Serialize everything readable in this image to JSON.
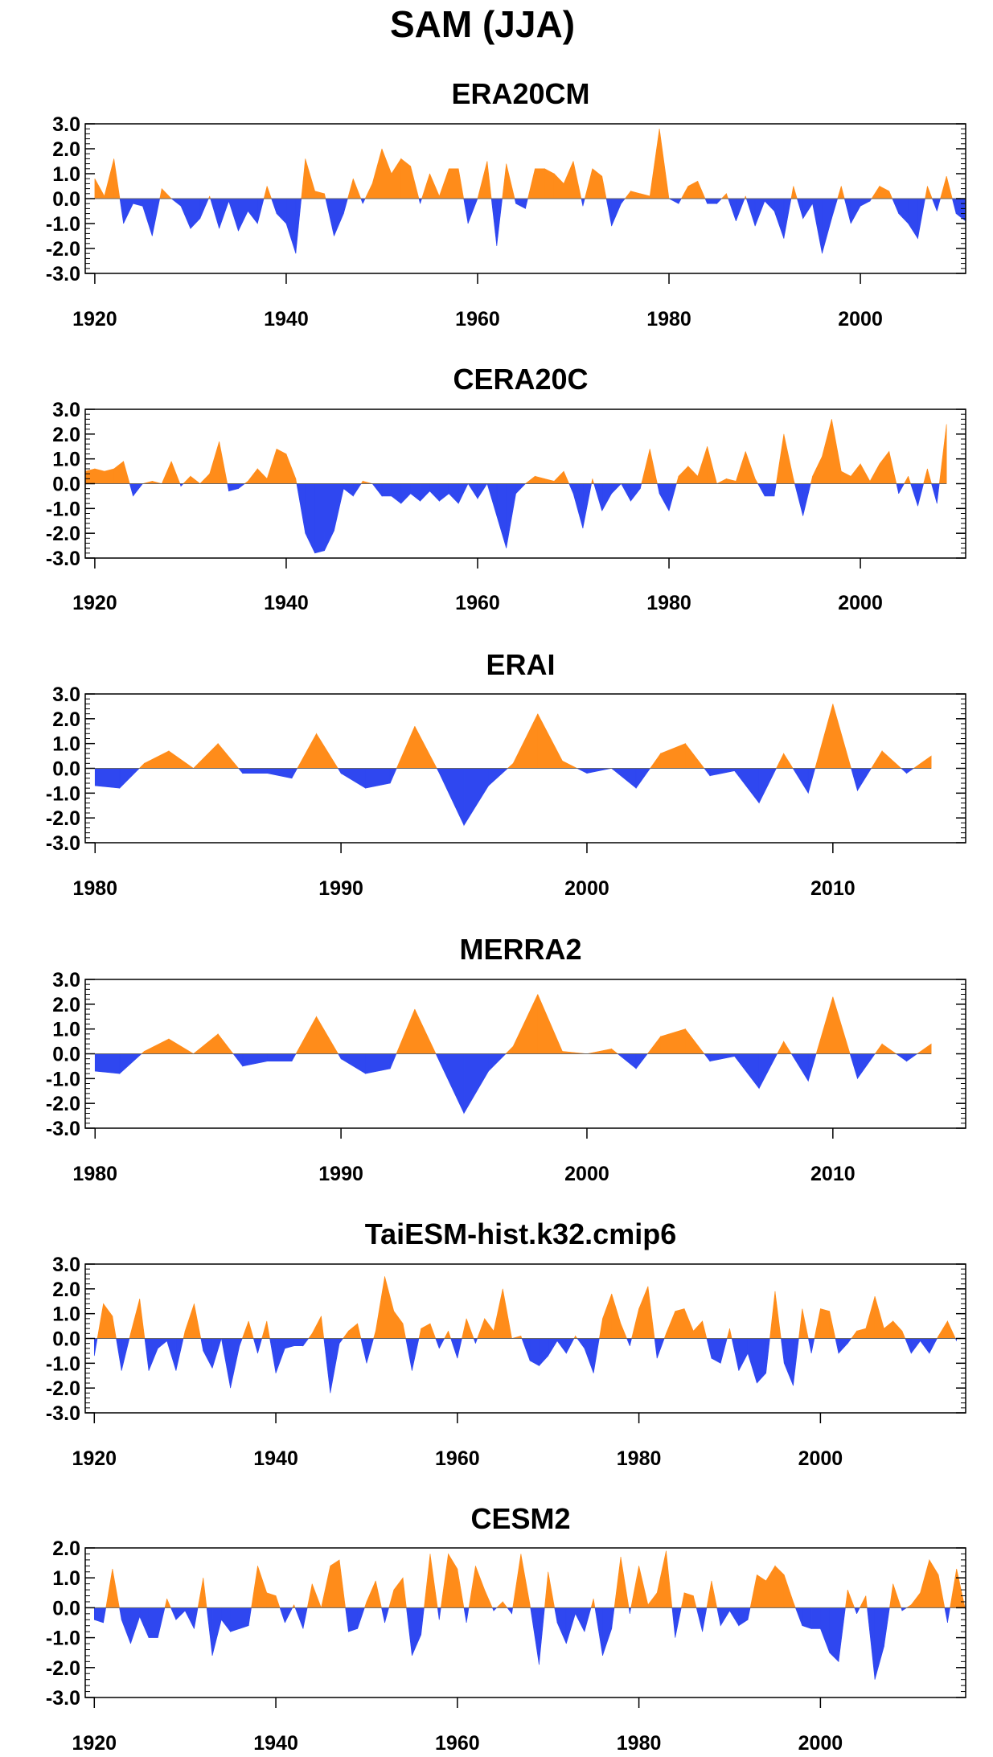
{
  "figure": {
    "title": "SAM (JJA)",
    "pos_color": "#ff8c1a",
    "neg_color": "#2f47f0"
  },
  "chart_data": [
    {
      "type": "area",
      "title": "ERA20CM",
      "xlim": [
        1919,
        2011
      ],
      "ylim": [
        -3.0,
        3.0
      ],
      "xticks": [
        1920,
        1940,
        1960,
        1980,
        2000
      ],
      "yticks": [
        "3.0",
        "2.0",
        "1.0",
        "0.0",
        "-1.0",
        "-2.0",
        "-3.0"
      ],
      "x_start": 1920,
      "values": [
        0.8,
        0.1,
        1.6,
        -1.0,
        -0.2,
        -0.3,
        -1.5,
        0.4,
        0.0,
        -0.3,
        -1.2,
        -0.8,
        0.1,
        -1.2,
        -0.1,
        -1.3,
        -0.5,
        -1.0,
        0.5,
        -0.6,
        -1.0,
        -2.2,
        1.6,
        0.3,
        0.2,
        -1.5,
        -0.6,
        0.8,
        -0.2,
        0.6,
        2.0,
        1.0,
        1.6,
        1.3,
        -0.2,
        1.0,
        0.1,
        1.2,
        1.2,
        -1.0,
        0.0,
        1.5,
        -1.9,
        1.4,
        -0.2,
        -0.4,
        1.2,
        1.2,
        1.0,
        0.6,
        1.5,
        -0.3,
        1.2,
        0.9,
        -1.1,
        -0.2,
        0.3,
        0.2,
        0.1,
        2.8,
        0.0,
        -0.2,
        0.5,
        0.7,
        -0.2,
        -0.2,
        0.2,
        -0.9,
        0.1,
        -1.1,
        -0.1,
        -0.5,
        -1.6,
        0.5,
        -0.8,
        -0.2,
        -2.2,
        -0.8,
        0.5,
        -1.0,
        -0.3,
        -0.1,
        0.5,
        0.3,
        -0.6,
        -1.0,
        -1.6,
        0.5,
        -0.5,
        0.9,
        -0.6,
        -0.9
      ]
    },
    {
      "type": "area",
      "title": "CERA20C",
      "xlim": [
        1919,
        2011
      ],
      "ylim": [
        -3.0,
        3.0
      ],
      "xticks": [
        1920,
        1940,
        1960,
        1980,
        2000
      ],
      "yticks": [
        "3.0",
        "2.0",
        "1.0",
        "0.0",
        "-1.0",
        "-2.0",
        "-3.0"
      ],
      "x_start": 1919,
      "values": [
        0.5,
        0.6,
        0.5,
        0.6,
        0.9,
        -0.5,
        0.0,
        0.1,
        0.0,
        0.9,
        -0.1,
        0.3,
        0.0,
        0.4,
        1.7,
        -0.3,
        -0.2,
        0.1,
        0.6,
        0.2,
        1.4,
        1.2,
        0.2,
        -2.0,
        -2.8,
        -2.7,
        -1.9,
        -0.2,
        -0.5,
        0.1,
        0.0,
        -0.5,
        -0.5,
        -0.8,
        -0.4,
        -0.7,
        -0.3,
        -0.7,
        -0.4,
        -0.8,
        0.0,
        -0.6,
        0.0,
        -1.3,
        -2.6,
        -0.4,
        0.0,
        0.3,
        0.2,
        0.1,
        0.5,
        -0.4,
        -1.8,
        0.2,
        -1.1,
        -0.4,
        0.0,
        -0.7,
        -0.2,
        1.4,
        -0.4,
        -1.1,
        0.3,
        0.7,
        0.3,
        1.5,
        0.0,
        0.2,
        0.1,
        1.3,
        0.2,
        -0.5,
        -0.5,
        2.0,
        0.2,
        -1.3,
        0.3,
        1.1,
        2.6,
        0.5,
        0.3,
        0.8,
        0.1,
        0.8,
        1.3,
        -0.4,
        0.3,
        -0.9,
        0.6,
        -0.8,
        2.4
      ]
    },
    {
      "type": "area",
      "title": "ERAI",
      "xlim": [
        1979.6,
        2015.4
      ],
      "ylim": [
        -3.0,
        3.0
      ],
      "xticks": [
        1980,
        1990,
        2000,
        2010
      ],
      "yticks": [
        "3.0",
        "2.0",
        "1.0",
        "0.0",
        "-1.0",
        "-2.0",
        "-3.0"
      ],
      "x_start": 1980,
      "values": [
        -0.7,
        -0.8,
        0.2,
        0.7,
        0.0,
        1.0,
        -0.2,
        -0.2,
        -0.4,
        1.4,
        -0.2,
        -0.8,
        -0.6,
        1.7,
        -0.2,
        -2.3,
        -0.7,
        0.2,
        2.2,
        0.3,
        -0.2,
        0.0,
        -0.8,
        0.6,
        1.0,
        -0.3,
        -0.1,
        -1.4,
        0.6,
        -1.0,
        2.6,
        -0.9,
        0.7,
        -0.2,
        0.5
      ]
    },
    {
      "type": "area",
      "title": "MERRA2",
      "xlim": [
        1979.6,
        2015.4
      ],
      "ylim": [
        -3.0,
        3.0
      ],
      "xticks": [
        1980,
        1990,
        2000,
        2010
      ],
      "yticks": [
        "3.0",
        "2.0",
        "1.0",
        "0.0",
        "-1.0",
        "-2.0",
        "-3.0"
      ],
      "x_start": 1980,
      "values": [
        -0.7,
        -0.8,
        0.1,
        0.6,
        0.0,
        0.8,
        -0.5,
        -0.3,
        -0.3,
        1.5,
        -0.2,
        -0.8,
        -0.6,
        1.8,
        -0.3,
        -2.4,
        -0.7,
        0.3,
        2.4,
        0.1,
        0.0,
        0.2,
        -0.6,
        0.7,
        1.0,
        -0.3,
        -0.1,
        -1.4,
        0.5,
        -1.1,
        2.3,
        -1.0,
        0.4,
        -0.3,
        0.4
      ]
    },
    {
      "type": "area",
      "title": "TaiESM-hist.k32.cmip6",
      "xlim": [
        1919,
        2016
      ],
      "ylim": [
        -3.0,
        3.0
      ],
      "xticks": [
        1920,
        1940,
        1960,
        1980,
        2000
      ],
      "yticks": [
        "3.0",
        "2.0",
        "1.0",
        "0.0",
        "-1.0",
        "-2.0",
        "-3.0"
      ],
      "x_start": 1920,
      "values": [
        -0.7,
        1.4,
        0.9,
        -1.3,
        0.2,
        1.6,
        -1.3,
        -0.4,
        -0.1,
        -1.3,
        0.3,
        1.4,
        -0.5,
        -1.2,
        0.0,
        -2.0,
        -0.3,
        0.7,
        -0.6,
        0.7,
        -1.4,
        -0.4,
        -0.3,
        -0.3,
        0.2,
        0.9,
        -2.2,
        -0.2,
        0.3,
        0.6,
        -1.0,
        0.3,
        2.5,
        1.1,
        0.6,
        -1.3,
        0.4,
        0.6,
        -0.4,
        0.3,
        -0.8,
        0.8,
        -0.2,
        0.8,
        0.3,
        2.0,
        0.0,
        0.1,
        -0.9,
        -1.1,
        -0.7,
        -0.1,
        -0.6,
        0.1,
        -0.4,
        -1.4,
        0.8,
        1.8,
        0.6,
        -0.3,
        1.2,
        2.1,
        -0.8,
        0.2,
        1.1,
        1.2,
        0.3,
        0.7,
        -0.8,
        -1.0,
        0.4,
        -1.3,
        -0.6,
        -1.8,
        -1.4,
        1.9,
        -1.0,
        -1.9,
        1.2,
        -0.6,
        1.2,
        1.1,
        -0.6,
        -0.2,
        0.3,
        0.4,
        1.7,
        0.4,
        0.7,
        0.3,
        -0.6,
        -0.1,
        -0.6,
        0.1,
        0.7,
        -0.1
      ]
    },
    {
      "type": "area",
      "title": "CESM2",
      "xlim": [
        1919,
        2016
      ],
      "ylim": [
        -3.0,
        2.0
      ],
      "xticks": [
        1920,
        1940,
        1960,
        1980,
        2000
      ],
      "yticks": [
        "2.0",
        "1.0",
        "0.0",
        "-1.0",
        "-2.0",
        "-3.0"
      ],
      "x_start": 1920,
      "values": [
        -0.4,
        -0.5,
        1.3,
        -0.4,
        -1.2,
        -0.3,
        -1.0,
        -1.0,
        0.3,
        -0.4,
        -0.1,
        -0.7,
        1.0,
        -1.6,
        -0.4,
        -0.8,
        -0.7,
        -0.6,
        1.4,
        0.5,
        0.4,
        -0.5,
        0.1,
        -0.7,
        0.8,
        0.0,
        1.4,
        1.6,
        -0.8,
        -0.7,
        0.2,
        0.9,
        -0.5,
        0.6,
        1.0,
        -1.6,
        -0.9,
        1.8,
        -0.4,
        1.8,
        1.3,
        -0.5,
        1.4,
        0.6,
        -0.1,
        0.2,
        -0.2,
        1.8,
        0.1,
        -1.9,
        1.2,
        -0.5,
        -1.2,
        -0.2,
        -0.8,
        0.3,
        -1.6,
        -0.7,
        1.7,
        -0.2,
        1.4,
        0.1,
        0.5,
        1.9,
        -1.0,
        0.5,
        0.4,
        -0.8,
        0.9,
        -0.6,
        -0.1,
        -0.6,
        -0.4,
        1.1,
        0.9,
        1.4,
        1.1,
        0.2,
        -0.6,
        -0.7,
        -0.7,
        -1.5,
        -1.8,
        0.6,
        -0.2,
        0.4,
        -2.4,
        -1.3,
        0.8,
        -0.1,
        0.1,
        0.5,
        1.6,
        1.1,
        -0.5,
        1.3,
        -0.1
      ]
    }
  ]
}
